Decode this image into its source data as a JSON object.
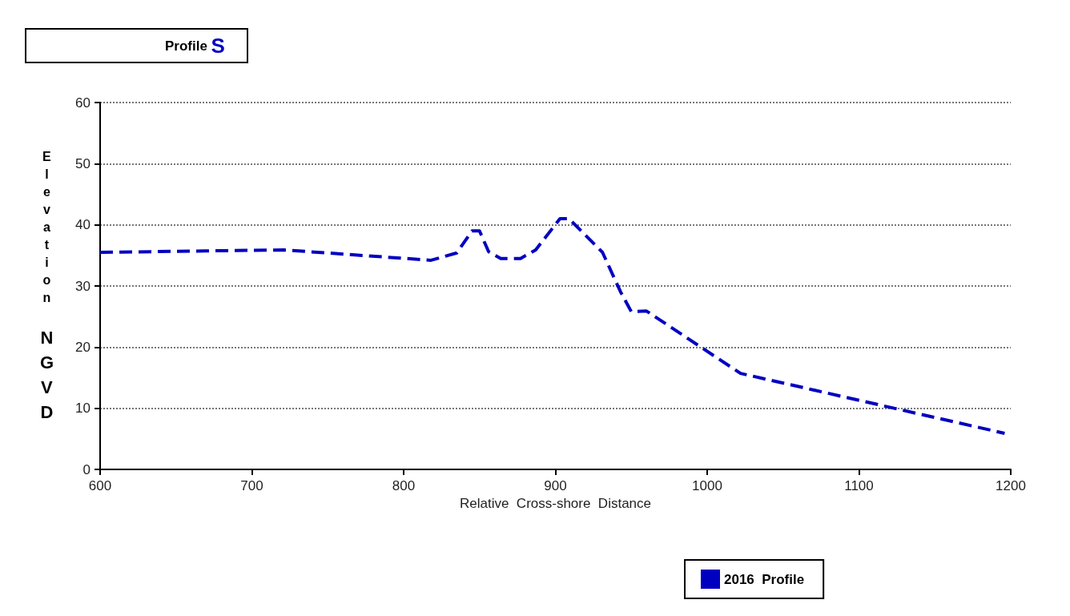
{
  "chart_data": {
    "type": "line",
    "title": "Profile S",
    "xlabel": "Relative  Cross-shore  Distance",
    "ylabel": "Elevation NGVD",
    "series": [
      {
        "name": "2016  Profile",
        "color": "#0000c0",
        "x": [
          600,
          721,
          818,
          835,
          845,
          850,
          856,
          864,
          877,
          887,
          903,
          909,
          931,
          943,
          950,
          960,
          1022,
          1196
        ],
        "values": [
          35.5,
          35.9,
          34.2,
          35.4,
          39.0,
          39.0,
          35.6,
          34.5,
          34.5,
          35.9,
          41.0,
          41.0,
          35.5,
          29.0,
          25.8,
          25.9,
          15.7,
          5.9
        ]
      }
    ],
    "xlim": [
      600,
      1200
    ],
    "xticks": [
      600,
      700,
      800,
      900,
      1000,
      1100,
      1200
    ],
    "ylim": [
      0,
      60
    ],
    "yticks": [
      0,
      10,
      20,
      30,
      40,
      50,
      60
    ],
    "grid": "y",
    "legend": "bottom",
    "marker": "none",
    "line_style": "dashed"
  }
}
